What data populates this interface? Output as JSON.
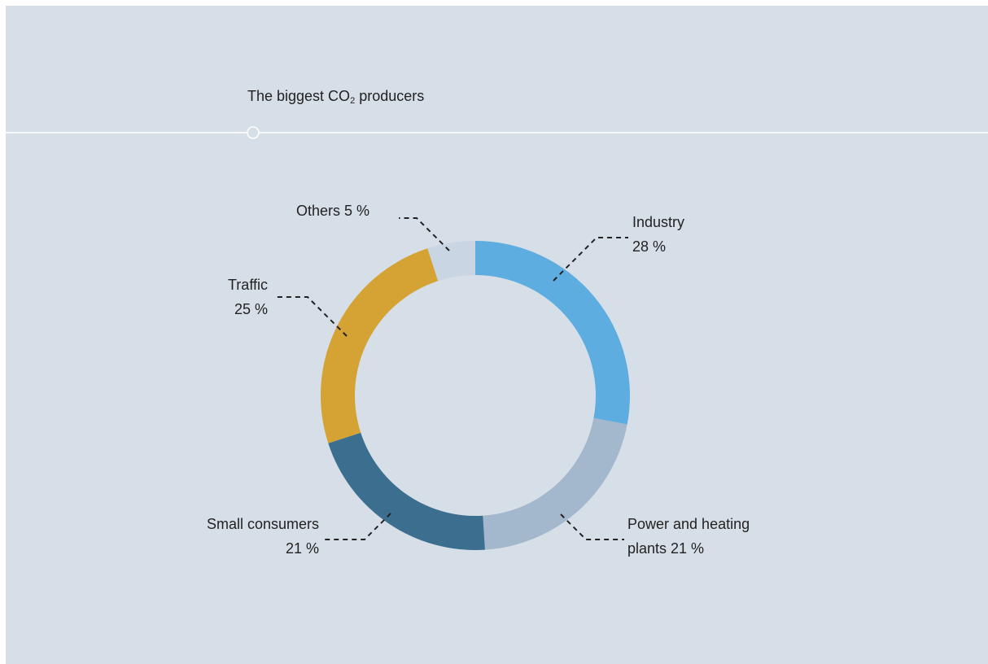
{
  "header": {
    "title_prefix": "The biggest CO",
    "title_subscript": "2",
    "title_suffix": " producers"
  },
  "chart_data": {
    "type": "pie",
    "title": "The biggest CO2 producers",
    "donut": true,
    "slices": [
      {
        "label": "Industry",
        "value": 28,
        "color": "#5dade0"
      },
      {
        "label": "Power and heating plants",
        "value": 21,
        "color": "#a3b8cc"
      },
      {
        "label": "Small consumers",
        "value": 21,
        "color": "#3b6e8f"
      },
      {
        "label": "Traffic",
        "value": 25,
        "color": "#d4a333"
      },
      {
        "label": "Others",
        "value": 5,
        "color": "#c9d5e3"
      }
    ]
  },
  "labels": {
    "industry": {
      "line1": "Industry",
      "line2": "28 %"
    },
    "power": {
      "line1": "Power and heating",
      "line2": "plants 21 %"
    },
    "small": {
      "line1": "Small consumers",
      "line2": "21 %"
    },
    "traffic": {
      "line1": "Traffic",
      "line2": "25 %"
    },
    "others": {
      "line1": "Others 5 %"
    }
  }
}
